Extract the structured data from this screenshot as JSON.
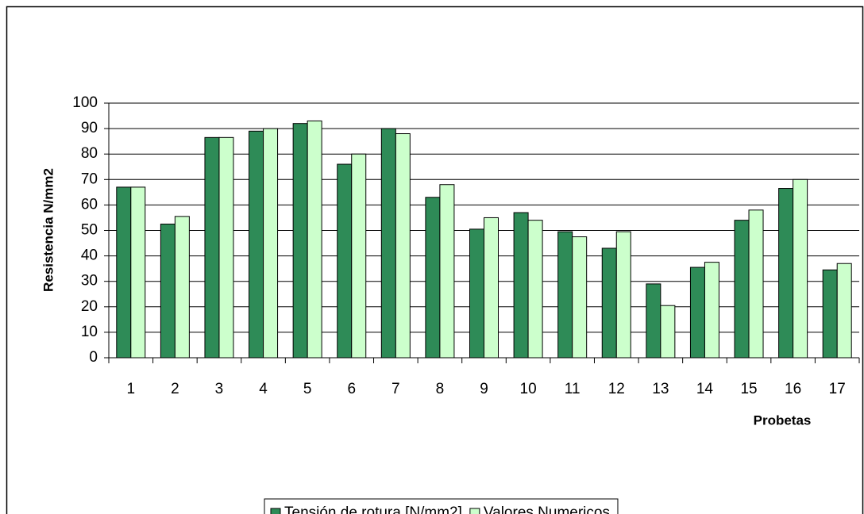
{
  "chart_data": {
    "type": "bar",
    "categories": [
      "1",
      "2",
      "3",
      "4",
      "5",
      "6",
      "7",
      "8",
      "9",
      "10",
      "11",
      "12",
      "13",
      "14",
      "15",
      "16",
      "17"
    ],
    "series": [
      {
        "name": "Tensión de rotura [N/mm2]",
        "color": "#2e8b57",
        "values": [
          67,
          52.5,
          86.5,
          89,
          92,
          76,
          90,
          63,
          50.5,
          57,
          49.5,
          43,
          29,
          35.5,
          54,
          66.5,
          34.5
        ]
      },
      {
        "name": "Valores Numericos",
        "color": "#ccffcc",
        "values": [
          67,
          55.5,
          86.5,
          90,
          93,
          80,
          88,
          68,
          55,
          54,
          47.5,
          49.5,
          20.5,
          37.5,
          58,
          70,
          37
        ]
      }
    ],
    "ylabel": "Resistencia N/mm2",
    "xlabel": "Probetas",
    "ylim": [
      0,
      100
    ],
    "yticks": [
      0,
      10,
      20,
      30,
      40,
      50,
      60,
      70,
      80,
      90,
      100
    ],
    "grid": true
  }
}
